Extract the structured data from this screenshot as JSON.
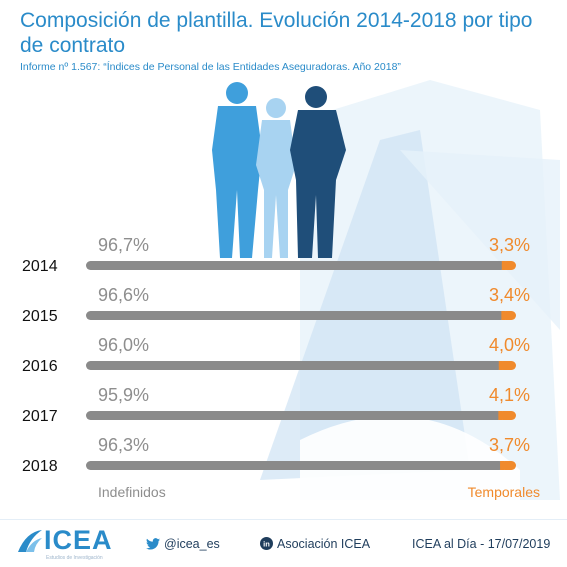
{
  "header": {
    "title": "Composición de plantilla. Evolución 2014-2018 por tipo de contrato",
    "subtitle": "Informe nº 1.567: “Índices de Personal de las Entidades Aseguradoras. Año 2018”"
  },
  "colors": {
    "title": "#2a8bc9",
    "subtitle": "#2a8bc9",
    "indefinidos": "#8a8a8a",
    "temporales": "#f08a2c",
    "year_label": "#111111",
    "pct_left": "#8e8e8e",
    "pct_right": "#f08a2c",
    "background_shape": "#dcecf8"
  },
  "chart_data": {
    "type": "bar",
    "stacked": true,
    "orientation": "horizontal",
    "categories": [
      "2014",
      "2015",
      "2016",
      "2017",
      "2018"
    ],
    "series": [
      {
        "name": "Indefinidos",
        "values": [
          96.7,
          96.6,
          96.0,
          95.9,
          96.3
        ],
        "labels": [
          "96,7%",
          "96,6%",
          "96,0%",
          "95,9%",
          "96,3%"
        ]
      },
      {
        "name": "Temporales",
        "values": [
          3.3,
          3.4,
          4.0,
          4.1,
          3.7
        ],
        "labels": [
          "3,3%",
          "3,4%",
          "4,0%",
          "4,1%",
          "3,7%"
        ]
      }
    ],
    "xlim": [
      0,
      100
    ],
    "legend": {
      "left": "Indefinidos",
      "right": "Temporales"
    }
  },
  "footer": {
    "logo_text": "ICEA",
    "logo_tagline": "Estudios de Investigación",
    "logo_icon": "icea-wave-icon",
    "twitter_icon": "twitter-bird-icon",
    "twitter": "@icea_es",
    "linkedin_icon": "linkedin-icon",
    "linkedin": "Asociación ICEA",
    "date_line": "ICEA al Día - 17/07/2019"
  }
}
